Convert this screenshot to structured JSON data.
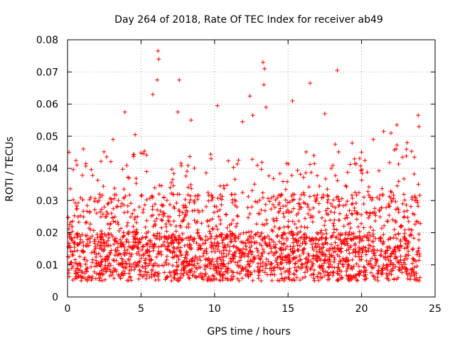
{
  "chart_data": {
    "type": "scatter",
    "title": "Day 264 of 2018, Rate Of TEC Index for receiver ab49",
    "xlabel": "GPS time / hours",
    "ylabel": "ROTI / TECUs",
    "xlim": [
      0,
      25
    ],
    "ylim": [
      0,
      0.08
    ],
    "xticks": [
      0,
      5,
      10,
      15,
      20,
      25
    ],
    "yticks": [
      0,
      0.01,
      0.02,
      0.03,
      0.04,
      0.05,
      0.06,
      0.07,
      0.08
    ],
    "xtick_labels": [
      "0",
      "5",
      "10",
      "15",
      "20",
      "25"
    ],
    "ytick_labels": [
      "0",
      "0.01",
      "0.02",
      "0.03",
      "0.04",
      "0.05",
      "0.06",
      "0.07",
      "0.08"
    ],
    "grid": true,
    "marker": "+",
    "marker_color": "#ff0000",
    "x_data_range": [
      0,
      24
    ],
    "typical_range": [
      0.005,
      0.02
    ],
    "notable_points": [
      {
        "x": 0.1,
        "y": 0.045
      },
      {
        "x": 3.1,
        "y": 0.049
      },
      {
        "x": 3.9,
        "y": 0.0575
      },
      {
        "x": 4.6,
        "y": 0.0505
      },
      {
        "x": 5.8,
        "y": 0.063
      },
      {
        "x": 6.15,
        "y": 0.0765
      },
      {
        "x": 6.2,
        "y": 0.074
      },
      {
        "x": 6.1,
        "y": 0.0675
      },
      {
        "x": 7.6,
        "y": 0.0675
      },
      {
        "x": 7.5,
        "y": 0.0575
      },
      {
        "x": 8.4,
        "y": 0.055
      },
      {
        "x": 10.2,
        "y": 0.0595
      },
      {
        "x": 11.9,
        "y": 0.0545
      },
      {
        "x": 12.4,
        "y": 0.0625
      },
      {
        "x": 12.6,
        "y": 0.0565
      },
      {
        "x": 13.3,
        "y": 0.073
      },
      {
        "x": 13.4,
        "y": 0.071
      },
      {
        "x": 13.35,
        "y": 0.066
      },
      {
        "x": 13.5,
        "y": 0.059
      },
      {
        "x": 15.3,
        "y": 0.061
      },
      {
        "x": 16.5,
        "y": 0.0665
      },
      {
        "x": 17.5,
        "y": 0.057
      },
      {
        "x": 18.35,
        "y": 0.0705
      },
      {
        "x": 18.2,
        "y": 0.0475
      },
      {
        "x": 20.8,
        "y": 0.049
      },
      {
        "x": 21.5,
        "y": 0.0515
      },
      {
        "x": 22.0,
        "y": 0.051
      },
      {
        "x": 22.4,
        "y": 0.0535
      },
      {
        "x": 23.1,
        "y": 0.048
      },
      {
        "x": 23.85,
        "y": 0.0565
      },
      {
        "x": 23.9,
        "y": 0.053
      }
    ]
  }
}
